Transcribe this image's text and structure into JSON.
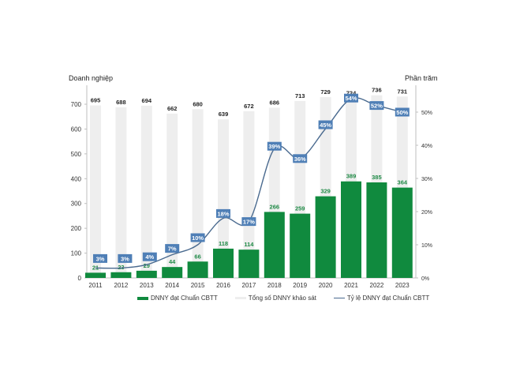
{
  "chart_data": {
    "type": "bar",
    "title": "",
    "xlabel": "",
    "ylabel": "Doanh nghiệp",
    "y2label": "Phần trăm",
    "categories": [
      "2011",
      "2012",
      "2013",
      "2014",
      "2015",
      "2016",
      "2017",
      "2018",
      "2019",
      "2020",
      "2021",
      "2022",
      "2023"
    ],
    "series": [
      {
        "name": "DNNY đạt Chuẩn CBTT",
        "type": "bar",
        "axis": "left",
        "color": "#108a3e",
        "values": [
          21,
          23,
          29,
          44,
          66,
          118,
          114,
          266,
          259,
          329,
          389,
          385,
          364
        ]
      },
      {
        "name": "Tổng số DNNY khảo sát",
        "type": "bar",
        "axis": "left",
        "color": "#eeeeee",
        "values": [
          695,
          688,
          694,
          662,
          680,
          639,
          672,
          686,
          713,
          729,
          724,
          736,
          731
        ]
      },
      {
        "name": "Tỷ lệ DNNY đạt Chuẩn CBTT",
        "type": "line",
        "axis": "right",
        "color": "#4a6a8f",
        "unit": "%",
        "values": [
          3,
          3,
          4,
          7,
          10,
          18,
          17,
          39,
          36,
          45,
          54,
          52,
          50
        ]
      }
    ],
    "ylim": [
      0,
      700
    ],
    "yticks": [
      0,
      100,
      200,
      300,
      400,
      500,
      600,
      700
    ],
    "y2lim": [
      0,
      50
    ],
    "y2ticks": [
      "0%",
      "10%",
      "20%",
      "30%",
      "40%",
      "50%"
    ],
    "grid": false,
    "legend_position": "bottom"
  },
  "labels": {
    "left_axis_title": "Doanh nghiệp",
    "right_axis_title": "Phần trăm",
    "legend": [
      "DNNY đạt Chuẩn CBTT",
      "Tổng số DNNY khảo sát",
      "Tỷ lệ DNNY đạt Chuẩn CBTT"
    ]
  },
  "colors": {
    "green_bar": "#108a3e",
    "gray_bar": "#eeeeee",
    "line": "#4a6a8f",
    "pct_box": "#4f7fb6",
    "green_label": "#1f8a46",
    "axis": "#bfbfbf"
  }
}
